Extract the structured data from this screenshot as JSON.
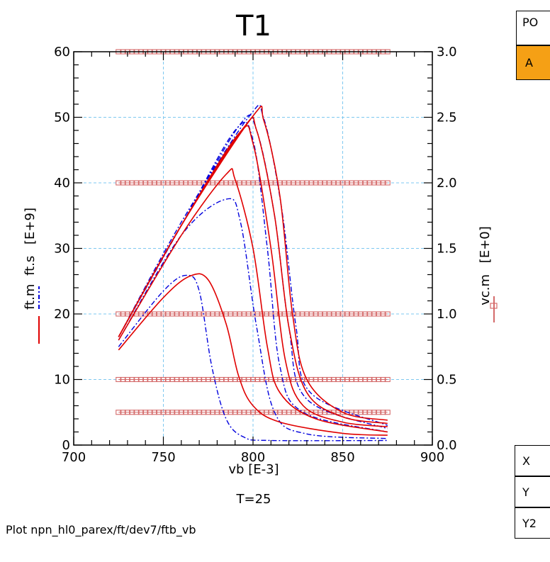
{
  "chart_data": {
    "type": "line",
    "title": "T1",
    "subtitle": "T=25",
    "xlabel": "vb  [E-3]",
    "ylabel_left_1": "ft.m",
    "ylabel_left_2": "ft.s",
    "ylabel_left_unit": "[E+9]",
    "ylabel_right_1": "vc.m",
    "ylabel_right_unit": "[E+0]",
    "xlim": [
      700,
      900
    ],
    "ylim_left": [
      0,
      60
    ],
    "ylim_right": [
      0,
      3.0
    ],
    "xticks": [
      "700",
      "750",
      "800",
      "850",
      "900"
    ],
    "yticks_left": [
      "0",
      "10",
      "20",
      "30",
      "40",
      "50",
      "60"
    ],
    "yticks_right": [
      "0.0",
      "0.5",
      "1.0",
      "1.5",
      "2.0",
      "2.5",
      "3.0"
    ],
    "grid": true,
    "colors": {
      "measured": "#e00000",
      "simulated": "#0000dd",
      "vc_markers": "#d46a6a",
      "grid": "#7ec8f0"
    },
    "series_measured_ft": [
      [
        [
          725,
          14.5
        ],
        [
          750,
          22.5
        ],
        [
          765,
          25.8
        ],
        [
          775,
          25.2
        ],
        [
          785,
          18.5
        ],
        [
          792,
          10.5
        ],
        [
          800,
          6
        ],
        [
          815,
          3.5
        ],
        [
          850,
          1.8
        ],
        [
          875,
          1.5
        ]
      ],
      [
        [
          725,
          16
        ],
        [
          760,
          32
        ],
        [
          785,
          41.3
        ],
        [
          790,
          40.5
        ],
        [
          800,
          30
        ],
        [
          808,
          15
        ],
        [
          815,
          8
        ],
        [
          835,
          4
        ],
        [
          875,
          2
        ]
      ],
      [
        [
          725,
          16.5
        ],
        [
          760,
          33.5
        ],
        [
          792,
          47.5
        ],
        [
          800,
          46
        ],
        [
          810,
          30
        ],
        [
          818,
          13
        ],
        [
          828,
          6
        ],
        [
          850,
          3.5
        ],
        [
          875,
          2.8
        ]
      ],
      [
        [
          725,
          16.5
        ],
        [
          760,
          33.5
        ],
        [
          795,
          48.5
        ],
        [
          802,
          48
        ],
        [
          812,
          35
        ],
        [
          820,
          18
        ],
        [
          830,
          8
        ],
        [
          850,
          4.3
        ],
        [
          875,
          3.3
        ]
      ],
      [
        [
          725,
          16.5
        ],
        [
          760,
          33.5
        ],
        [
          800,
          50.2
        ],
        [
          806,
          49.5
        ],
        [
          815,
          38
        ],
        [
          822,
          20
        ],
        [
          830,
          10
        ],
        [
          850,
          5
        ],
        [
          875,
          3.8
        ]
      ]
    ],
    "series_simulated_ft": [
      [
        [
          725,
          15
        ],
        [
          750,
          23.5
        ],
        [
          763,
          25.9
        ],
        [
          770,
          23.5
        ],
        [
          777,
          12
        ],
        [
          785,
          4
        ],
        [
          795,
          1.2
        ],
        [
          810,
          0.7
        ],
        [
          875,
          0.7
        ]
      ],
      [
        [
          725,
          16
        ],
        [
          760,
          32
        ],
        [
          785,
          37.5
        ],
        [
          793,
          34
        ],
        [
          802,
          18
        ],
        [
          812,
          5
        ],
        [
          830,
          1.7
        ],
        [
          875,
          1
        ]
      ],
      [
        [
          725,
          16.5
        ],
        [
          760,
          33.5
        ],
        [
          790,
          48
        ],
        [
          800,
          46.5
        ],
        [
          808,
          30
        ],
        [
          815,
          12
        ],
        [
          828,
          5
        ],
        [
          875,
          2
        ]
      ],
      [
        [
          725,
          16.5
        ],
        [
          760,
          33.5
        ],
        [
          793,
          49
        ],
        [
          802,
          48
        ],
        [
          812,
          35
        ],
        [
          820,
          18
        ],
        [
          830,
          7
        ],
        [
          875,
          2.5
        ]
      ],
      [
        [
          725,
          16.5
        ],
        [
          760,
          34
        ],
        [
          798,
          50.2
        ],
        [
          806,
          49.8
        ],
        [
          816,
          36
        ],
        [
          824,
          18
        ],
        [
          832,
          8
        ],
        [
          875,
          3
        ]
      ]
    ],
    "series_vc_m": [
      {
        "vc": 0.25,
        "x_range": [
          725,
          875
        ]
      },
      {
        "vc": 0.5,
        "x_range": [
          725,
          875
        ]
      },
      {
        "vc": 1.0,
        "x_range": [
          725,
          875
        ]
      },
      {
        "vc": 2.0,
        "x_range": [
          725,
          875
        ]
      },
      {
        "vc": 3.0,
        "x_range": [
          725,
          875
        ]
      }
    ]
  },
  "panel": {
    "po_label": "PO",
    "a_label": "A",
    "x_label": "X",
    "y_label": "Y",
    "y2_label": "Y2"
  },
  "footer": "Plot npn_hl0_parex/ft/dev7/ftb_vb"
}
